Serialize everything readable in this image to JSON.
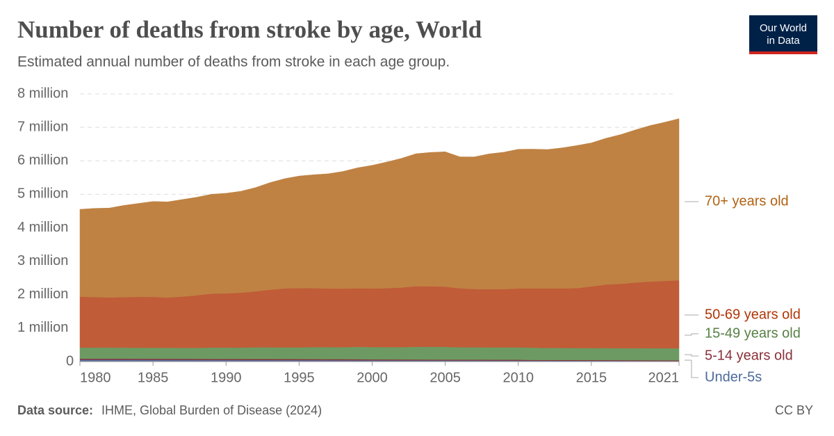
{
  "chart_data": {
    "type": "stacked-area",
    "title": "Number of deaths from stroke by age, World",
    "subtitle": "Estimated annual number of deaths from stroke in each age group.",
    "logo": [
      "Our World",
      "in Data"
    ],
    "source_label": "Data source:",
    "source": "IHME, Global Burden of Disease (2024)",
    "license": "CC BY",
    "x": [
      1980,
      1981,
      1982,
      1983,
      1984,
      1985,
      1986,
      1987,
      1988,
      1989,
      1990,
      1991,
      1992,
      1993,
      1994,
      1995,
      1996,
      1997,
      1998,
      1999,
      2000,
      2001,
      2002,
      2003,
      2004,
      2005,
      2006,
      2007,
      2008,
      2009,
      2010,
      2011,
      2012,
      2013,
      2014,
      2015,
      2016,
      2017,
      2018,
      2019,
      2020,
      2021
    ],
    "xlim": [
      1980,
      2021
    ],
    "xticks": [
      1980,
      1985,
      1990,
      1995,
      2000,
      2005,
      2010,
      2015,
      2021
    ],
    "ylim": [
      0,
      8
    ],
    "yticks": [
      0,
      {
        "value": 1,
        "label": "1 million"
      },
      {
        "value": 2,
        "label": "2 million"
      },
      {
        "value": 3,
        "label": "3 million"
      },
      {
        "value": 4,
        "label": "4 million"
      },
      {
        "value": 5,
        "label": "5 million"
      },
      {
        "value": 6,
        "label": "6 million"
      },
      {
        "value": 7,
        "label": "7 million"
      },
      {
        "value": 8,
        "label": "8 million"
      }
    ],
    "grid": true,
    "series": [
      {
        "name": "70+ years old",
        "color": "#bf8243",
        "label_color": "#b16214",
        "values": [
          2.61,
          2.65,
          2.67,
          2.74,
          2.79,
          2.85,
          2.86,
          2.9,
          2.93,
          2.97,
          2.99,
          3.03,
          3.1,
          3.2,
          3.28,
          3.35,
          3.39,
          3.43,
          3.5,
          3.6,
          3.68,
          3.77,
          3.86,
          3.96,
          4.0,
          4.03,
          3.93,
          3.95,
          4.04,
          4.09,
          4.16,
          4.16,
          4.15,
          4.2,
          4.26,
          4.29,
          4.37,
          4.46,
          4.56,
          4.66,
          4.74,
          4.83
        ]
      },
      {
        "name": "50-69 years old",
        "color": "#c05c38",
        "label_color": "#b13507",
        "values": [
          1.52,
          1.51,
          1.5,
          1.51,
          1.52,
          1.52,
          1.5,
          1.53,
          1.57,
          1.61,
          1.62,
          1.64,
          1.67,
          1.72,
          1.76,
          1.77,
          1.76,
          1.75,
          1.75,
          1.75,
          1.75,
          1.76,
          1.78,
          1.81,
          1.81,
          1.8,
          1.76,
          1.74,
          1.74,
          1.74,
          1.76,
          1.77,
          1.78,
          1.78,
          1.79,
          1.84,
          1.9,
          1.92,
          1.96,
          1.99,
          2.01,
          2.03
        ]
      },
      {
        "name": "15-49 years old",
        "color": "#6d9a62",
        "label_color": "#578145",
        "values": [
          0.33,
          0.33,
          0.33,
          0.33,
          0.33,
          0.33,
          0.33,
          0.33,
          0.33,
          0.34,
          0.34,
          0.34,
          0.35,
          0.35,
          0.35,
          0.35,
          0.36,
          0.36,
          0.36,
          0.37,
          0.37,
          0.37,
          0.37,
          0.38,
          0.38,
          0.38,
          0.37,
          0.37,
          0.37,
          0.37,
          0.37,
          0.37,
          0.36,
          0.36,
          0.36,
          0.36,
          0.36,
          0.36,
          0.36,
          0.36,
          0.36,
          0.36
        ]
      },
      {
        "name": "5-14 years old",
        "color": "#883039",
        "label_color": "#883039",
        "values": [
          0.03,
          0.03,
          0.03,
          0.03,
          0.03,
          0.03,
          0.03,
          0.03,
          0.03,
          0.03,
          0.03,
          0.03,
          0.03,
          0.03,
          0.03,
          0.03,
          0.03,
          0.03,
          0.03,
          0.03,
          0.025,
          0.025,
          0.025,
          0.025,
          0.025,
          0.025,
          0.025,
          0.025,
          0.025,
          0.025,
          0.025,
          0.02,
          0.02,
          0.02,
          0.02,
          0.02,
          0.02,
          0.02,
          0.02,
          0.02,
          0.02,
          0.02
        ]
      },
      {
        "name": "Under-5s",
        "color": "#5a6ea0",
        "label_color": "#4c6a9c",
        "values": [
          0.06,
          0.059,
          0.058,
          0.057,
          0.056,
          0.055,
          0.054,
          0.053,
          0.052,
          0.051,
          0.05,
          0.049,
          0.048,
          0.047,
          0.046,
          0.045,
          0.044,
          0.043,
          0.042,
          0.041,
          0.04,
          0.039,
          0.038,
          0.037,
          0.036,
          0.035,
          0.034,
          0.033,
          0.032,
          0.031,
          0.03,
          0.029,
          0.028,
          0.027,
          0.026,
          0.025,
          0.024,
          0.023,
          0.022,
          0.021,
          0.02,
          0.019
        ]
      }
    ]
  }
}
